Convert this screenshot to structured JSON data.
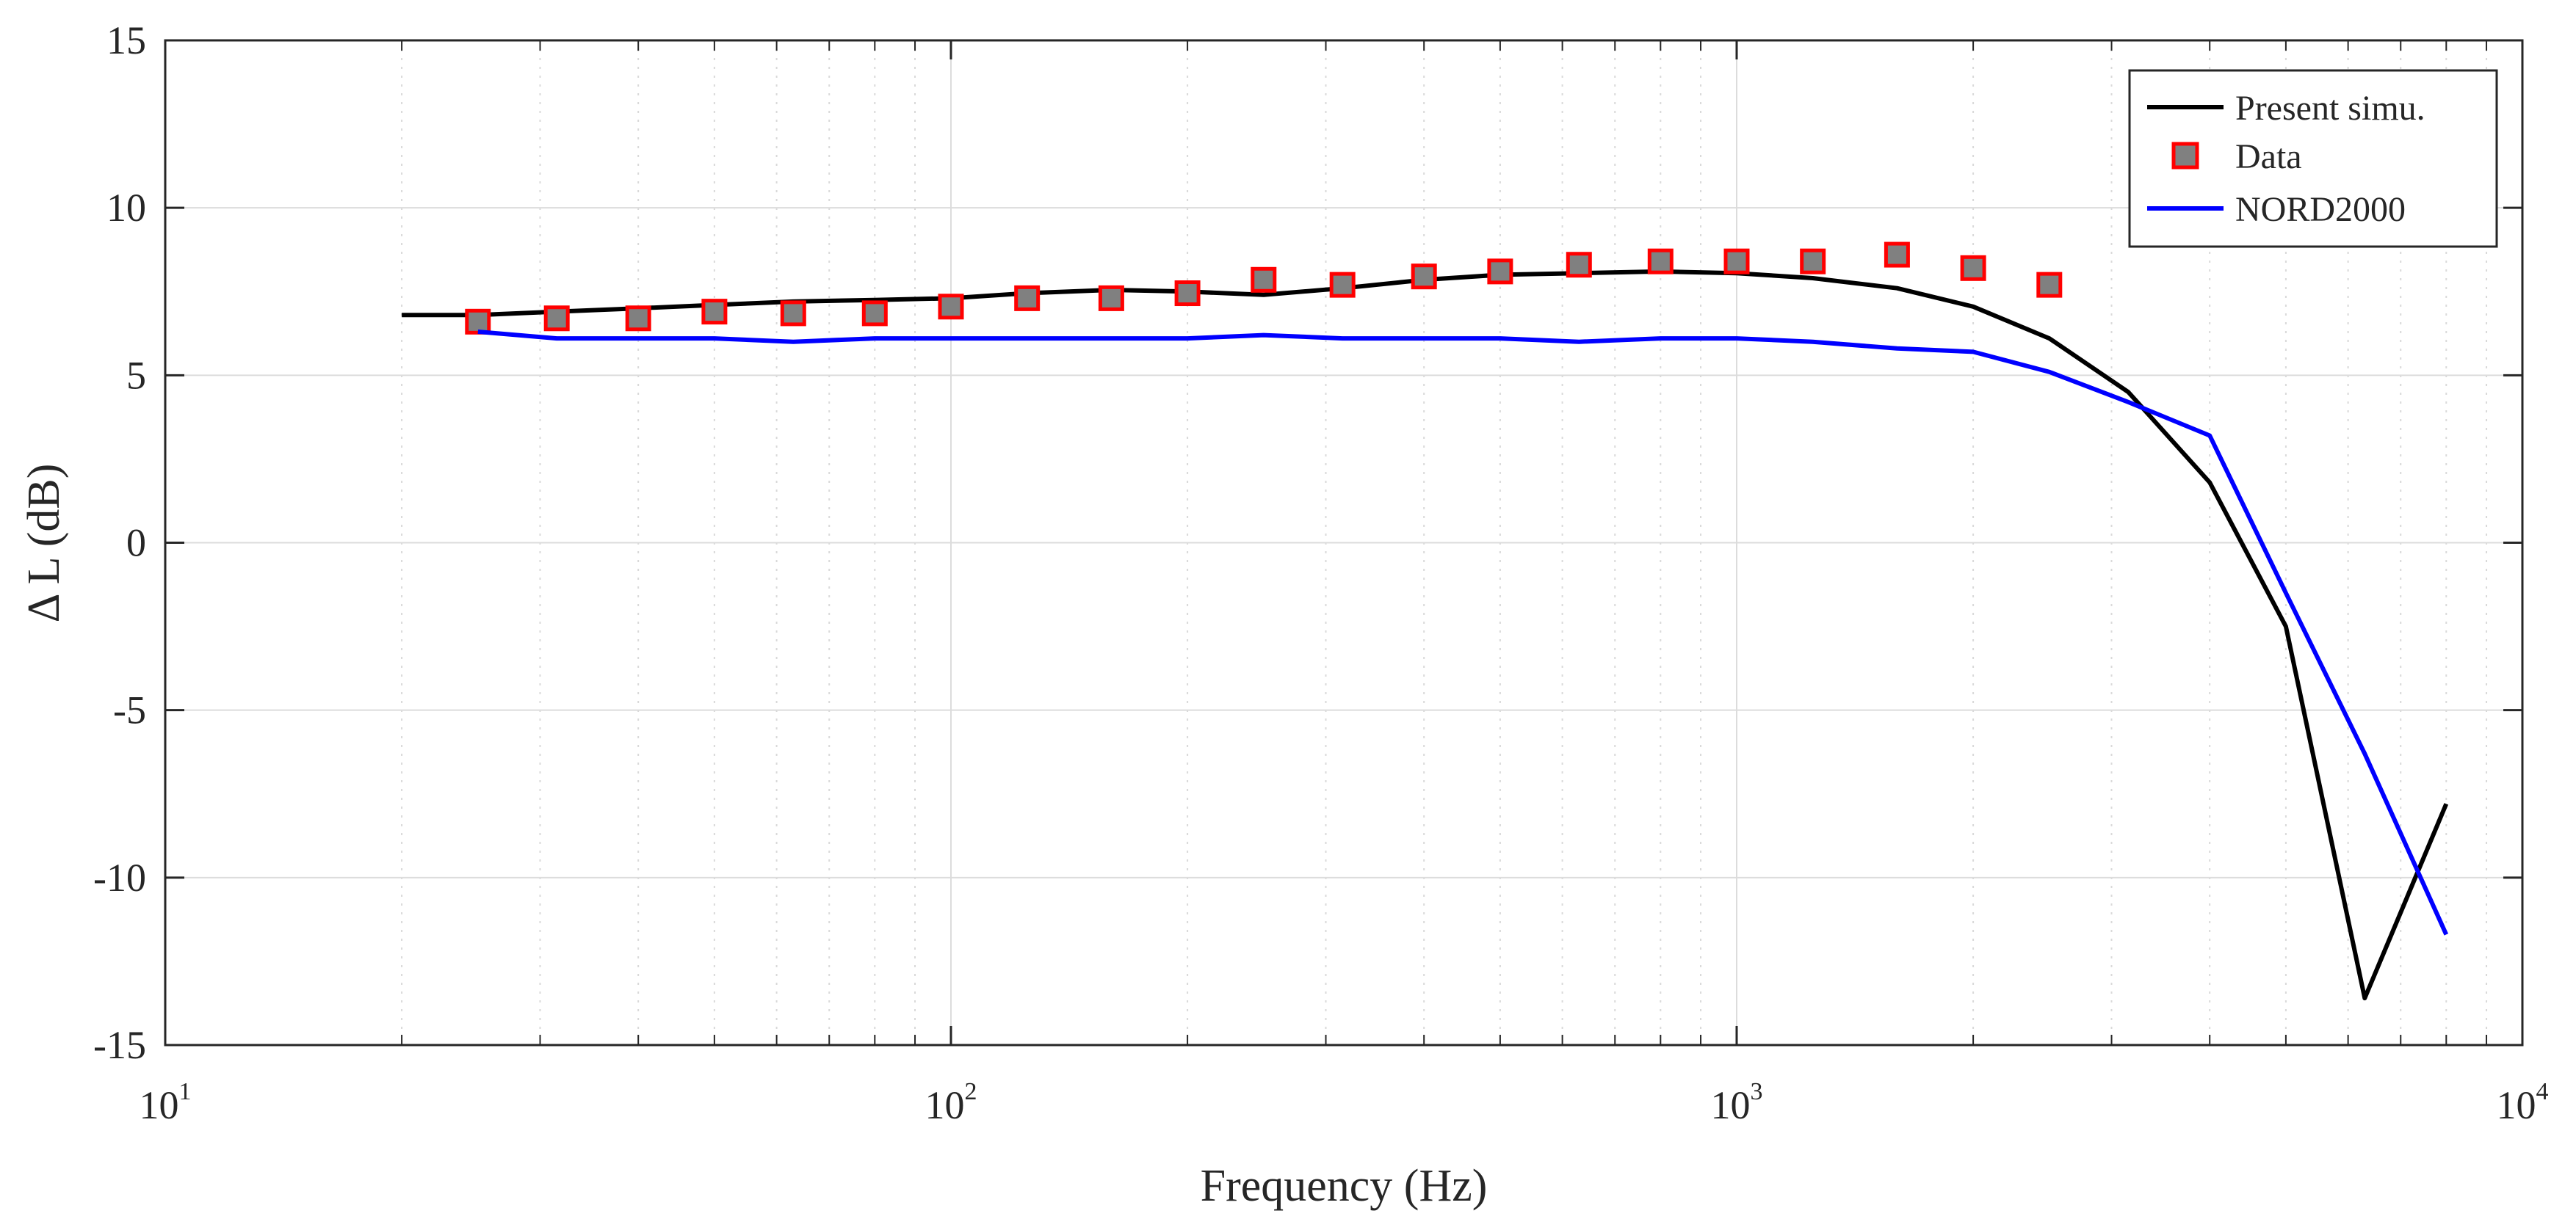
{
  "chart_data": {
    "type": "line",
    "title": "",
    "xlabel": "Frequency (Hz)",
    "ylabel": "Δ L (dB)",
    "xscale": "log",
    "xlim": [
      10,
      10000
    ],
    "ylim": [
      -15,
      15
    ],
    "grid": true,
    "legend_position": "top-right",
    "x_ticks": [
      {
        "value": 10,
        "base": "10",
        "exp": "1"
      },
      {
        "value": 100,
        "base": "10",
        "exp": "2"
      },
      {
        "value": 1000,
        "base": "10",
        "exp": "3"
      },
      {
        "value": 10000,
        "base": "10",
        "exp": "4"
      }
    ],
    "y_ticks": [
      {
        "value": 15,
        "label": "15"
      },
      {
        "value": 10,
        "label": "10"
      },
      {
        "value": 5,
        "label": "5"
      },
      {
        "value": 0,
        "label": "0"
      },
      {
        "value": -5,
        "label": "-5"
      },
      {
        "value": -10,
        "label": "-10"
      },
      {
        "value": -15,
        "label": "-15"
      }
    ],
    "series": [
      {
        "name": "Present simu.",
        "kind": "line",
        "color": "#000000",
        "x": [
          20,
          25,
          31.5,
          40,
          50,
          63,
          80,
          100,
          125,
          160,
          200,
          250,
          315,
          400,
          500,
          630,
          800,
          1000,
          1250,
          1600,
          2000,
          2500,
          3150,
          4000,
          5000,
          6300,
          8000
        ],
        "y": [
          6.8,
          6.8,
          6.9,
          7.0,
          7.1,
          7.2,
          7.25,
          7.3,
          7.45,
          7.55,
          7.5,
          7.4,
          7.6,
          7.85,
          8.0,
          8.05,
          8.1,
          8.05,
          7.9,
          7.6,
          7.05,
          6.1,
          4.5,
          1.8,
          -2.5,
          -13.6,
          -7.8
        ]
      },
      {
        "name": "Data",
        "kind": "marker",
        "color": "#808080",
        "edge_color": "#ff0000",
        "x": [
          25,
          31.5,
          40,
          50,
          63,
          80,
          100,
          125,
          160,
          200,
          250,
          315,
          400,
          500,
          630,
          800,
          1000,
          1250,
          1600,
          2000,
          2500
        ],
        "y": [
          6.6,
          6.7,
          6.7,
          6.9,
          6.85,
          6.85,
          7.05,
          7.3,
          7.3,
          7.45,
          7.85,
          7.7,
          7.95,
          8.1,
          8.3,
          8.4,
          8.4,
          8.4,
          8.6,
          8.2,
          7.7
        ]
      },
      {
        "name": "NORD2000",
        "kind": "line",
        "color": "#0000ff",
        "x": [
          25,
          31.5,
          40,
          50,
          63,
          80,
          100,
          125,
          160,
          200,
          250,
          315,
          400,
          500,
          630,
          800,
          1000,
          1250,
          1600,
          2000,
          2500,
          3150,
          4000,
          5000,
          6300,
          8000
        ],
        "y": [
          6.3,
          6.1,
          6.1,
          6.1,
          6.0,
          6.1,
          6.1,
          6.1,
          6.1,
          6.1,
          6.2,
          6.1,
          6.1,
          6.1,
          6.0,
          6.1,
          6.1,
          6.0,
          5.8,
          5.7,
          5.1,
          4.2,
          3.2,
          -1.5,
          -6.3,
          -11.7
        ]
      }
    ]
  }
}
